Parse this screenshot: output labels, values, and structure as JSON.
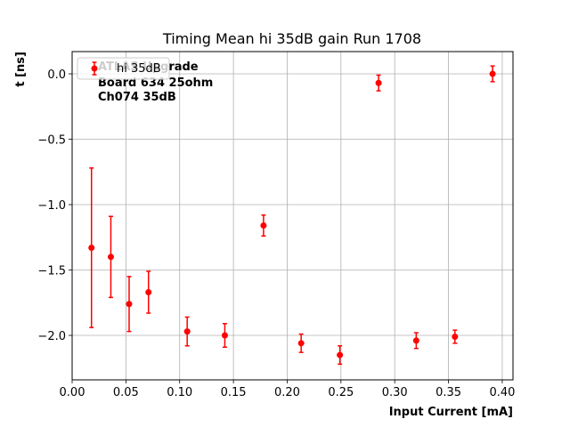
{
  "chart_data": {
    "type": "scatter",
    "title": "Timing Mean hi 35dB gain Run 1708",
    "xlabel": "Input Current [mA]",
    "ylabel": "t [ns]",
    "xlim": [
      0.0,
      0.41
    ],
    "ylim": [
      -2.34,
      0.17
    ],
    "x_ticks": [
      0.0,
      0.05,
      0.1,
      0.15,
      0.2,
      0.25,
      0.3,
      0.35,
      0.4
    ],
    "x_tick_labels": [
      "0.00",
      "0.05",
      "0.10",
      "0.15",
      "0.20",
      "0.25",
      "0.30",
      "0.35",
      "0.40"
    ],
    "y_ticks": [
      0.0,
      -0.5,
      -1.0,
      -1.5,
      -2.0
    ],
    "y_tick_labels": [
      "0.0",
      "−0.5",
      "−1.0",
      "−1.5",
      "−2.0"
    ],
    "grid": true,
    "legend_position": "top-left",
    "annotation_lines": [
      "ATLAS Upgrade",
      "Board 634 25ohm",
      "Ch074 35dB"
    ],
    "series": [
      {
        "name": "hi 35dB",
        "color": "#ff0000",
        "x": [
          0.018,
          0.036,
          0.053,
          0.071,
          0.107,
          0.142,
          0.178,
          0.213,
          0.249,
          0.285,
          0.32,
          0.356,
          0.391
        ],
        "y": [
          -1.33,
          -1.4,
          -1.76,
          -1.67,
          -1.97,
          -2.0,
          -1.16,
          -2.06,
          -2.15,
          -0.07,
          -2.04,
          -2.01,
          0.0
        ],
        "yerr": [
          0.61,
          0.31,
          0.21,
          0.16,
          0.11,
          0.09,
          0.08,
          0.07,
          0.07,
          0.06,
          0.06,
          0.05,
          0.06
        ]
      }
    ]
  }
}
